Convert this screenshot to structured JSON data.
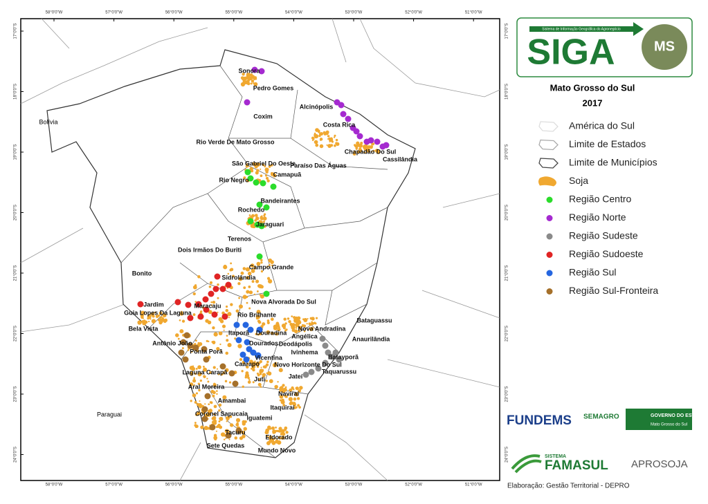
{
  "map": {
    "lon_labels": [
      "58°0'0\"W",
      "57°0'0\"W",
      "56°0'0\"W",
      "55°0'0\"W",
      "54°0'0\"W",
      "53°0'0\"W",
      "52°0'0\"W",
      "51°0'0\"W"
    ],
    "lat_labels": [
      "17°0'0\"S",
      "18°0'0\"S",
      "19°0'0\"S",
      "20°0'0\"S",
      "21°0'0\"S",
      "22°0'0\"S",
      "23°0'0\"S",
      "24°0'0\"S"
    ],
    "countries": [
      "Bolívia",
      "Paraguai"
    ],
    "cities": [
      "Sonora",
      "Pedro Gomes",
      "Alcinópolis",
      "Coxim",
      "Costa Rica",
      "Rio Verde De Mato Grosso",
      "Chapadão Do Sul",
      "Cassilândia",
      "São Gabriel Do Oeste",
      "Paraíso Das Águas",
      "Camapuã",
      "Rio Negro",
      "Bandeirantes",
      "Rochedo",
      "Jaraguari",
      "Dois Irmãos Do Buriti",
      "Terenos",
      "Campo Grande",
      "Bonito",
      "Sidrolândia",
      "Nova Alvorada Do Sul",
      "Jardim",
      "Maracaju",
      "Guia Lopes Da Laguna",
      "Rio Brilhante",
      "Bataguassu",
      "Bela Vista",
      "Nova Andradina",
      "Itaporã",
      "Douradina",
      "Angélica",
      "Anaurilândia",
      "Antônio João",
      "Dourados",
      "Deodápolis",
      "Ponta Porã",
      "Ivinhema",
      "Vicentina",
      "Batayporã",
      "Caarapó",
      "Novo Horizonte Do Sul",
      "Laguna Carapã",
      "Taquarussu",
      "Juti",
      "Jateí",
      "Aral Moreira",
      "Naviraí",
      "Amambai",
      "Itaquiraí",
      "Coronel Sapucaia",
      "Iguatemi",
      "Tacuru",
      "Eldorado",
      "Sete Quedas",
      "Mundo Novo"
    ]
  },
  "panel": {
    "logo_small": "Sistema de Informação Geográfica do Agronegócio",
    "logo_main": "SIGA",
    "logo_ms": "MS",
    "title": "Mato Grosso do Sul",
    "year": "2017",
    "legend": [
      {
        "label": "América do Sul",
        "kind": "outline",
        "color": "#dddddd"
      },
      {
        "label": "Limite de Estados",
        "kind": "outline",
        "color": "#aaaaaa"
      },
      {
        "label": "Limite de Municípios",
        "kind": "outline",
        "color": "#444444"
      },
      {
        "label": "Soja",
        "kind": "blob",
        "color": "#f0a830"
      },
      {
        "label": "Região Centro",
        "kind": "dot",
        "color": "#2bdc2b"
      },
      {
        "label": "Região Norte",
        "kind": "dot",
        "color": "#a52ad0"
      },
      {
        "label": "Região Sudeste",
        "kind": "dot",
        "color": "#8a8a8a"
      },
      {
        "label": "Região Sudoeste",
        "kind": "dot",
        "color": "#e02424"
      },
      {
        "label": "Região Sul",
        "kind": "dot",
        "color": "#2566e0"
      },
      {
        "label": "Região Sul-Fronteira",
        "kind": "dot",
        "color": "#a5702a"
      }
    ],
    "logos": [
      "FUNDEMS",
      "SEMAGRO",
      "GOVERNO DO ESTADO",
      "Mato Grosso do Sul",
      "SISTEMA",
      "FAMASUL",
      "APROSOJA"
    ],
    "credit": "Elaboração: Gestão Territorial - DEPRO"
  }
}
